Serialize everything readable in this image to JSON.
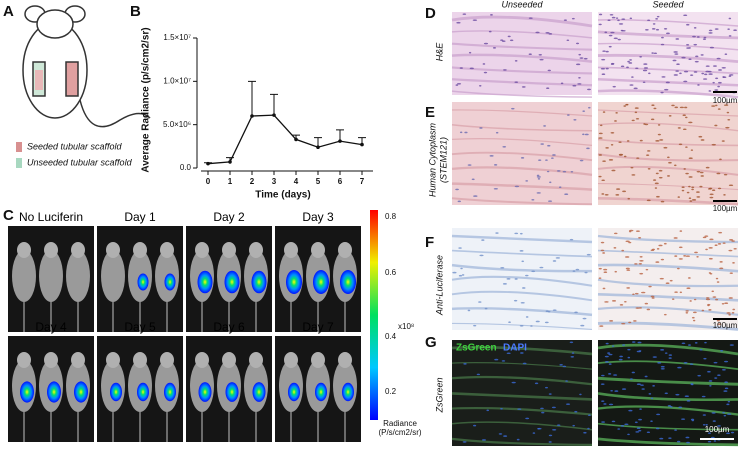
{
  "chart_data": {
    "type": "line",
    "x": [
      0,
      1,
      2,
      3,
      4,
      5,
      6,
      7
    ],
    "values": [
      500000,
      700000,
      6000000,
      6100000,
      3300000,
      2400000,
      3100000,
      2700000
    ],
    "errors": [
      100000,
      500000,
      4000000,
      2400000,
      500000,
      1100000,
      1300000,
      800000
    ],
    "color": "#111111",
    "xlabel": "Time (days)",
    "ylabel": "Average Radiance (p/s/cm2/sr)",
    "xlim": [
      -0.5,
      7.5
    ],
    "ylim": [
      0,
      15000000
    ],
    "xticks": [
      0,
      1,
      2,
      3,
      4,
      5,
      6,
      7
    ],
    "yticks": [
      {
        "value": 0,
        "label": "0.0"
      },
      {
        "value": 5000000,
        "label": "5.0×10⁶"
      },
      {
        "value": 10000000,
        "label": "1.0×10⁷"
      },
      {
        "value": 15000000,
        "label": "1.5×10⁷"
      }
    ]
  },
  "panel_a": {
    "letter": "A",
    "legend": [
      "Seeded tubular scaffold",
      "Unseeded tubular scaffold"
    ]
  },
  "panel_b": {
    "letter": "B"
  },
  "panel_c": {
    "letter": "C",
    "images": [
      "No Luciferin",
      "Day 1",
      "Day 2",
      "Day 3",
      "Day 4",
      "Day 5",
      "Day 6",
      "Day 7"
    ],
    "colorbar": {
      "ticks": [
        0.8,
        0.6,
        0.4,
        0.2
      ],
      "scale": "x10⁸",
      "title": "Radiance",
      "unit": "(P/s/cm2/sr)"
    }
  },
  "panel_d": {
    "letter": "D",
    "columns": [
      "Unseeded",
      "Seeded"
    ],
    "label": "H&E",
    "scale_bar": "100µm"
  },
  "panel_e": {
    "letter": "E",
    "label": [
      "Human Cytoplasm",
      "(STEM121)"
    ],
    "scale_bar": "100µm"
  },
  "panel_f": {
    "letter": "F",
    "label": "Anti-Luciferase",
    "scale_bar": "100µm"
  },
  "panel_g": {
    "letter": "G",
    "label": "ZsGreen",
    "stains": [
      "ZsGreen",
      "DAPI"
    ],
    "scale_bar": "100µm"
  }
}
